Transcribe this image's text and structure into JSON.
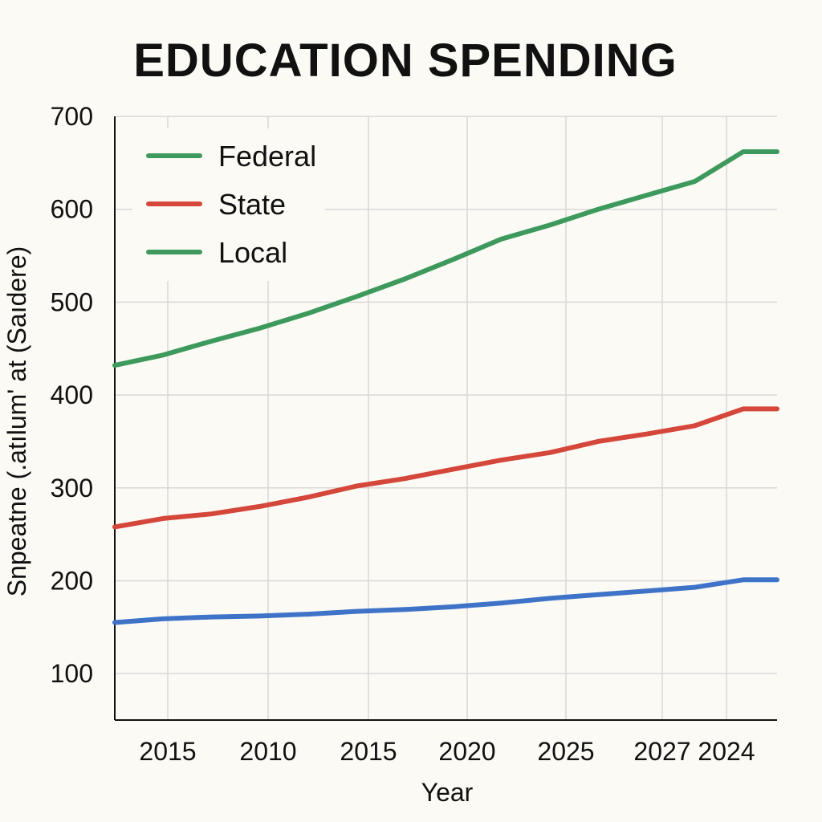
{
  "chart_data": {
    "type": "line",
    "title": "EDUCATION SPENDING",
    "xlabel": "Year",
    "ylabel": "Snpeatne (.atılum' at (Saıdere)",
    "ylim": [
      50,
      700
    ],
    "y_ticks": [
      100,
      200,
      300,
      400,
      500,
      600,
      700
    ],
    "x_tick_labels": [
      "2015",
      "2010",
      "2015",
      "2020",
      "2025",
      "2027",
      "2024"
    ],
    "x": [
      0,
      0.5,
      1,
      1.5,
      2,
      2.5,
      3,
      3.5,
      4,
      4.5,
      5,
      5.5,
      6,
      6.5,
      6.85
    ],
    "grid": true,
    "legend_position": "top-left",
    "series": [
      {
        "name": "Federal",
        "color": "#3e9a5c",
        "values": [
          432,
          443,
          458,
          472,
          488,
          506,
          525,
          546,
          568,
          583,
          600,
          615,
          630,
          662,
          662
        ],
        "show_line": true
      },
      {
        "name": "State",
        "color": "#d4473a",
        "values": [
          258,
          267,
          272,
          280,
          290,
          302,
          310,
          320,
          330,
          338,
          350,
          358,
          367,
          385,
          385
        ],
        "show_line": true
      },
      {
        "name": "Local",
        "color": "#3e9a5c",
        "values": [
          155,
          159,
          161,
          162,
          164,
          167,
          169,
          172,
          176,
          181,
          185,
          189,
          193,
          201,
          201
        ],
        "show_line": false
      },
      {
        "name": "",
        "color": "#3f73c8",
        "values": [
          155,
          159,
          161,
          162,
          164,
          167,
          169,
          172,
          176,
          181,
          185,
          189,
          193,
          201,
          201
        ],
        "show_line": true,
        "in_legend": false
      }
    ]
  }
}
